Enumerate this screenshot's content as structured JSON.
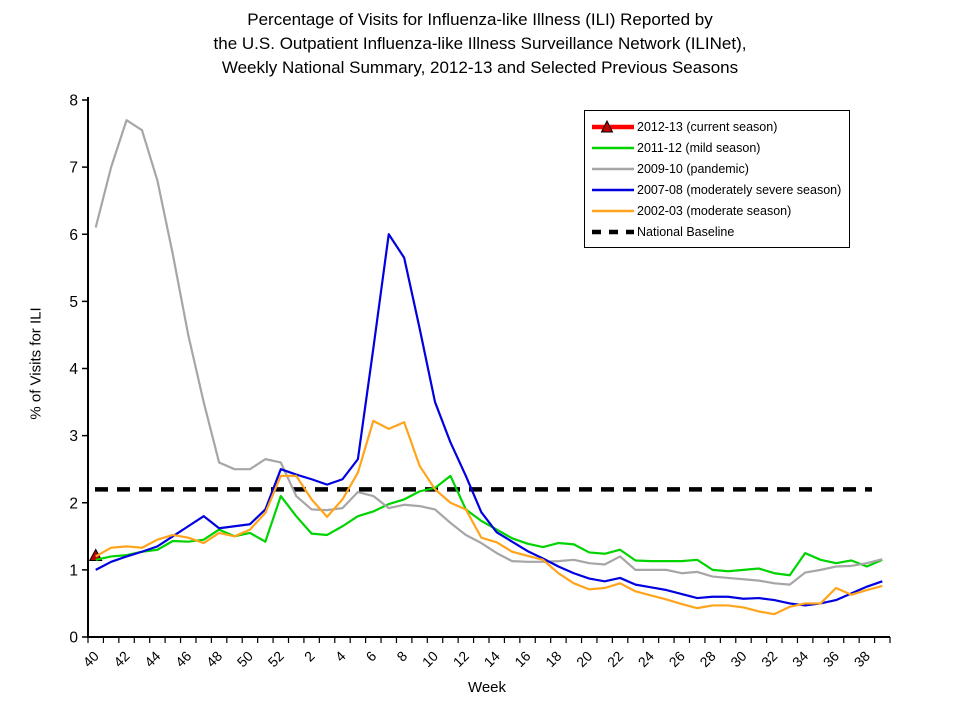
{
  "title_lines": [
    "Percentage of Visits for Influenza-like Illness (ILI) Reported by",
    "the U.S. Outpatient Influenza-like Illness Surveillance Network (ILINet),",
    "Weekly National Summary, 2012-13 and Selected Previous Seasons"
  ],
  "y_axis": {
    "title": "% of Visits for ILI",
    "tick_labels": [
      "0",
      "1",
      "2",
      "3",
      "4",
      "5",
      "6",
      "7",
      "8"
    ],
    "min": 0,
    "max": 8
  },
  "x_axis": {
    "title": "Week",
    "tick_labels": [
      "40",
      "42",
      "44",
      "46",
      "48",
      "50",
      "52",
      "2",
      "4",
      "6",
      "8",
      "10",
      "12",
      "14",
      "16",
      "18",
      "20",
      "22",
      "24",
      "26",
      "28",
      "30",
      "32",
      "34",
      "36",
      "38"
    ]
  },
  "legend": {
    "items": [
      {
        "label": "2012-13 (current season)",
        "color": "#FF0000",
        "style": "line-marker",
        "marker_fill": "#C00000"
      },
      {
        "label": "2011-12 (mild season)",
        "color": "#00D400",
        "style": "line"
      },
      {
        "label": "2009-10 (pandemic)",
        "color": "#A6A6A6",
        "style": "line"
      },
      {
        "label": "2007-08 (moderately severe season)",
        "color": "#0000E0",
        "style": "line"
      },
      {
        "label": "2002-03 (moderate season)",
        "color": "#FFA41C",
        "style": "line"
      },
      {
        "label": "National Baseline",
        "color": "#000000",
        "style": "dashed"
      }
    ]
  },
  "chart_data": {
    "type": "line",
    "title": "Percentage of Visits for Influenza-like Illness (ILI) Reported by the U.S. Outpatient Influenza-like Illness Surveillance Network (ILINet), Weekly National Summary, 2012-13 and Selected Previous Seasons",
    "xlabel": "Week",
    "ylabel": "% of Visits for ILI",
    "ylim": [
      0,
      8
    ],
    "grid": false,
    "legend_position": "upper-right",
    "categories": [
      "40",
      "41",
      "42",
      "43",
      "44",
      "45",
      "46",
      "47",
      "48",
      "49",
      "50",
      "51",
      "52",
      "1",
      "2",
      "3",
      "4",
      "5",
      "6",
      "7",
      "8",
      "9",
      "10",
      "11",
      "12",
      "13",
      "14",
      "15",
      "16",
      "17",
      "18",
      "19",
      "20",
      "21",
      "22",
      "23",
      "24",
      "25",
      "26",
      "27",
      "28",
      "29",
      "30",
      "31",
      "32",
      "33",
      "34",
      "35",
      "36",
      "37",
      "38",
      "39"
    ],
    "baseline": {
      "name": "National Baseline",
      "value": 2.2,
      "color": "#000000"
    },
    "series": [
      {
        "name": "2012-13 (current season)",
        "color": "#FF0000",
        "marker": "triangle",
        "marker_fill": "#C00000",
        "values": [
          1.2,
          null,
          null,
          null,
          null,
          null,
          null,
          null,
          null,
          null,
          null,
          null,
          null,
          null,
          null,
          null,
          null,
          null,
          null,
          null,
          null,
          null,
          null,
          null,
          null,
          null,
          null,
          null,
          null,
          null,
          null,
          null,
          null,
          null,
          null,
          null,
          null,
          null,
          null,
          null,
          null,
          null,
          null,
          null,
          null,
          null,
          null,
          null,
          null,
          null,
          null,
          null
        ]
      },
      {
        "name": "2011-12 (mild season)",
        "color": "#00D400",
        "values": [
          1.15,
          1.2,
          1.22,
          1.27,
          1.3,
          1.43,
          1.42,
          1.45,
          1.6,
          1.5,
          1.55,
          1.42,
          2.1,
          1.8,
          1.54,
          1.52,
          1.65,
          1.8,
          1.87,
          1.98,
          2.05,
          2.17,
          2.22,
          2.4,
          1.9,
          1.73,
          1.6,
          1.47,
          1.39,
          1.34,
          1.4,
          1.38,
          1.26,
          1.24,
          1.3,
          1.14,
          1.13,
          1.13,
          1.13,
          1.15,
          1.0,
          0.98,
          1.0,
          1.02,
          0.95,
          0.92,
          1.25,
          1.15,
          1.1,
          1.14,
          1.05,
          1.15
        ]
      },
      {
        "name": "2009-10 (pandemic)",
        "color": "#A6A6A6",
        "values": [
          6.1,
          7.0,
          7.7,
          7.55,
          6.8,
          5.7,
          4.5,
          3.5,
          2.6,
          2.5,
          2.5,
          2.65,
          2.6,
          2.1,
          1.9,
          1.89,
          1.92,
          2.16,
          2.1,
          1.92,
          1.97,
          1.95,
          1.9,
          1.7,
          1.52,
          1.4,
          1.25,
          1.13,
          1.12,
          1.12,
          1.13,
          1.15,
          1.1,
          1.08,
          1.2,
          1.0,
          1.0,
          1.0,
          0.95,
          0.97,
          0.9,
          0.88,
          0.86,
          0.84,
          0.8,
          0.78,
          0.96,
          1.0,
          1.05,
          1.06,
          1.1,
          1.16
        ]
      },
      {
        "name": "2007-08 (moderately severe season)",
        "color": "#0000E0",
        "values": [
          1.0,
          1.12,
          1.2,
          1.27,
          1.35,
          1.5,
          1.65,
          1.8,
          1.62,
          1.65,
          1.68,
          1.9,
          2.5,
          2.42,
          2.35,
          2.27,
          2.35,
          2.65,
          4.3,
          6.0,
          5.65,
          4.6,
          3.5,
          2.9,
          2.4,
          1.86,
          1.56,
          1.42,
          1.28,
          1.17,
          1.05,
          0.95,
          0.87,
          0.83,
          0.88,
          0.78,
          0.74,
          0.7,
          0.64,
          0.58,
          0.6,
          0.6,
          0.57,
          0.58,
          0.55,
          0.5,
          0.47,
          0.5,
          0.55,
          0.65,
          0.75,
          0.83
        ]
      },
      {
        "name": "2002-03 (moderate season)",
        "color": "#FFA41C",
        "values": [
          1.2,
          1.33,
          1.35,
          1.33,
          1.45,
          1.52,
          1.48,
          1.4,
          1.55,
          1.5,
          1.6,
          1.85,
          2.4,
          2.4,
          2.05,
          1.79,
          2.05,
          2.45,
          3.22,
          3.1,
          3.2,
          2.55,
          2.2,
          2.0,
          1.9,
          1.48,
          1.41,
          1.27,
          1.21,
          1.15,
          0.95,
          0.8,
          0.71,
          0.73,
          0.8,
          0.68,
          0.62,
          0.56,
          0.49,
          0.43,
          0.47,
          0.47,
          0.44,
          0.38,
          0.34,
          0.45,
          0.5,
          0.5,
          0.73,
          0.63,
          0.7,
          0.76
        ]
      }
    ]
  }
}
